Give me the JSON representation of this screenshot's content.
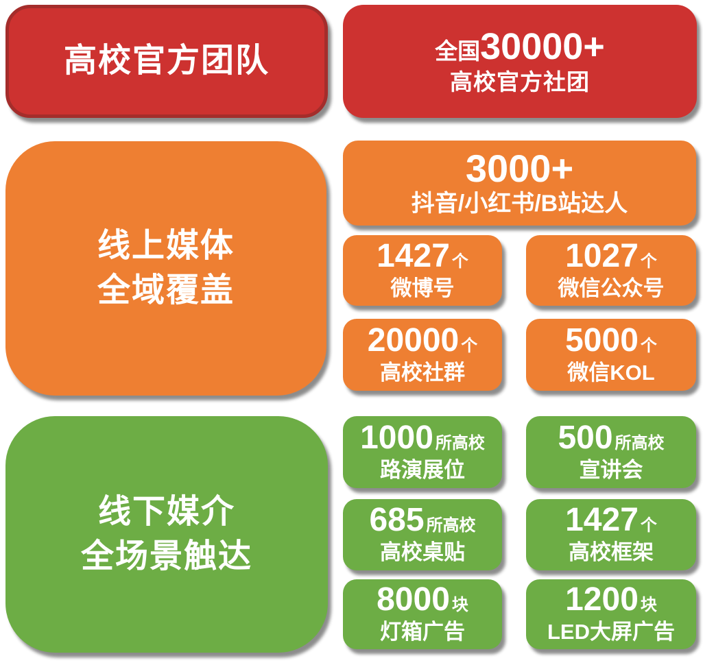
{
  "colors": {
    "red": "#CD3230",
    "red_border": "#A42D2B",
    "orange": "#EE7F32",
    "green": "#6DAD45",
    "text": "#FFFFFF"
  },
  "header": {
    "left_title": "高校官方团队",
    "right": {
      "prefix": "全国",
      "number": "30000+",
      "label": "高校官方社团"
    }
  },
  "online": {
    "title_line1": "线上媒体",
    "title_line2": "全域覆盖",
    "feature": {
      "number": "3000+",
      "label": "抖音/小红书/B站达人"
    },
    "stats": [
      {
        "number": "1427",
        "unit": "个",
        "label": "微博号"
      },
      {
        "number": "1027",
        "unit": "个",
        "label": "微信公众号"
      },
      {
        "number": "20000",
        "unit": "个",
        "label": "高校社群"
      },
      {
        "number": "5000",
        "unit": "个",
        "label": "微信KOL"
      }
    ]
  },
  "offline": {
    "title_line1": "线下媒介",
    "title_line2": "全场景触达",
    "stats": [
      {
        "number": "1000",
        "unit": "所高校",
        "label": "路演展位"
      },
      {
        "number": "500",
        "unit": "所高校",
        "label": "宣讲会"
      },
      {
        "number": "685",
        "unit": "所高校",
        "label": "高校桌贴"
      },
      {
        "number": "1427",
        "unit": "个",
        "label": "高校框架"
      },
      {
        "number": "8000",
        "unit": "块",
        "label": "灯箱广告"
      },
      {
        "number": "1200",
        "unit": "块",
        "label": "LED大屏广告"
      }
    ]
  }
}
